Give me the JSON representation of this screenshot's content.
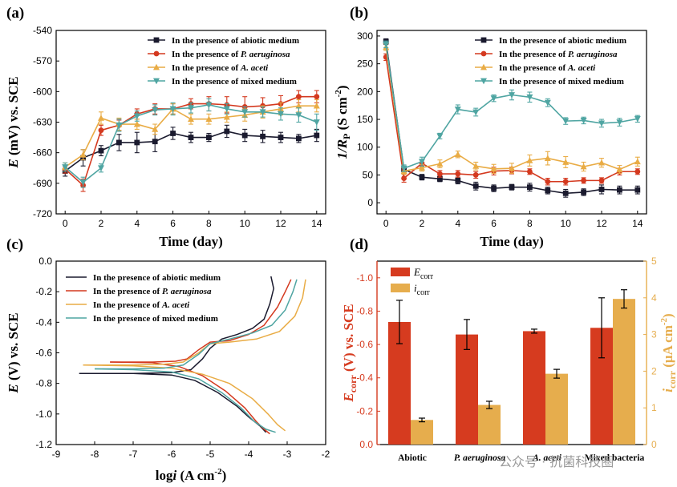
{
  "watermark": "公众号 · 抗菌科技圈",
  "chart_data": [
    {
      "panel": "(a)",
      "type": "line",
      "xlabel": "Time (day)",
      "ylabel_main": "E",
      "ylabel_rest": " (mV) vs. SCE",
      "xlim": [
        -0.5,
        14.5
      ],
      "ylim": [
        -720,
        -540
      ],
      "xticks": [
        0,
        2,
        4,
        6,
        8,
        10,
        12,
        14
      ],
      "yticks": [
        -720,
        -690,
        -660,
        -630,
        -600,
        -570,
        -540
      ],
      "x": [
        0,
        1,
        2,
        3,
        4,
        5,
        6,
        7,
        8,
        9,
        10,
        11,
        12,
        13,
        14
      ],
      "legend": {
        "position": "top-right",
        "prefix": "In the presence of "
      },
      "series": [
        {
          "name": "abiotic medium",
          "italic": false,
          "color": "#1a1a2e",
          "marker": "square",
          "values": [
            -678,
            -665,
            -658,
            -650,
            -650,
            -649,
            -641,
            -645,
            -645,
            -639,
            -643,
            -644,
            -645,
            -646,
            -643
          ],
          "errors": [
            5,
            8,
            5,
            8,
            10,
            10,
            6,
            5,
            4,
            6,
            6,
            6,
            5,
            4,
            6
          ]
        },
        {
          "name": "P. aeruginosa",
          "italic": true,
          "color": "#d4391f",
          "marker": "circle",
          "values": [
            -676,
            -692,
            -638,
            -633,
            -622,
            -617,
            -617,
            -612,
            -612,
            -613,
            -615,
            -614,
            -612,
            -605,
            -605
          ],
          "errors": [
            4,
            6,
            5,
            5,
            5,
            5,
            5,
            5,
            7,
            8,
            10,
            8,
            8,
            6,
            6
          ]
        },
        {
          "name": "A. aceti",
          "italic": true,
          "color": "#e9ac45",
          "marker": "triangle",
          "values": [
            -674,
            -662,
            -626,
            -632,
            -632,
            -637,
            -617,
            -627,
            -627,
            -625,
            -623,
            -620,
            -617,
            -614,
            -614
          ],
          "errors": [
            4,
            5,
            6,
            6,
            5,
            5,
            5,
            5,
            5,
            5,
            6,
            6,
            6,
            6,
            6
          ]
        },
        {
          "name": "mixed medium",
          "italic": false,
          "color": "#4fa5a2",
          "marker": "triangle-down",
          "values": [
            -674,
            -689,
            -675,
            -633,
            -624,
            -618,
            -617,
            -616,
            -613,
            -617,
            -620,
            -620,
            -622,
            -623,
            -630
          ],
          "errors": [
            4,
            5,
            4,
            6,
            5,
            5,
            6,
            5,
            6,
            5,
            5,
            5,
            6,
            7,
            8
          ]
        }
      ]
    },
    {
      "panel": "(b)",
      "type": "line",
      "xlabel": "Time (day)",
      "ylabel_main": "1/R",
      "ylabel_sub": "P",
      "ylabel_rest": " (S cm",
      "ylabel_sup": "-2",
      "ylabel_end": ")",
      "xlim": [
        -0.5,
        14.5
      ],
      "ylim": [
        -20,
        310
      ],
      "xticks": [
        0,
        2,
        4,
        6,
        8,
        10,
        12,
        14
      ],
      "yticks": [
        0,
        50,
        100,
        150,
        200,
        250,
        300
      ],
      "x": [
        0,
        1,
        2,
        3,
        4,
        5,
        6,
        7,
        8,
        9,
        10,
        11,
        12,
        13,
        14
      ],
      "legend": {
        "position": "top-right",
        "prefix": "In the presence of "
      },
      "series": [
        {
          "name": "abiotic medium",
          "italic": false,
          "color": "#1a1a2e",
          "marker": "square",
          "values": [
            290,
            60,
            46,
            43,
            40,
            30,
            26,
            28,
            28,
            22,
            17,
            19,
            24,
            23,
            23
          ],
          "errors": [
            5,
            5,
            5,
            5,
            6,
            7,
            6,
            5,
            7,
            6,
            7,
            6,
            8,
            7,
            7
          ]
        },
        {
          "name": "P. aeruginosa",
          "italic": true,
          "color": "#d4391f",
          "marker": "circle",
          "values": [
            262,
            44,
            71,
            52,
            52,
            50,
            57,
            58,
            56,
            38,
            38,
            40,
            40,
            56,
            56
          ],
          "errors": [
            6,
            7,
            6,
            6,
            6,
            6,
            7,
            6,
            5,
            6,
            6,
            5,
            5,
            6,
            5
          ]
        },
        {
          "name": "A. aceti",
          "italic": true,
          "color": "#e9ac45",
          "marker": "triangle",
          "values": [
            280,
            57,
            63,
            70,
            87,
            66,
            61,
            62,
            76,
            80,
            73,
            65,
            72,
            60,
            74
          ],
          "errors": [
            6,
            6,
            6,
            7,
            6,
            7,
            8,
            9,
            10,
            12,
            10,
            8,
            8,
            7,
            8
          ]
        },
        {
          "name": "mixed medium",
          "italic": false,
          "color": "#4fa5a2",
          "marker": "triangle-down",
          "values": [
            285,
            62,
            74,
            120,
            168,
            163,
            188,
            194,
            190,
            180,
            147,
            148,
            143,
            145,
            151
          ],
          "errors": [
            6,
            6,
            8,
            5,
            8,
            7,
            6,
            9,
            9,
            7,
            6,
            6,
            7,
            7,
            6
          ]
        }
      ]
    },
    {
      "panel": "(c)",
      "type": "line",
      "xlabel_main": "i",
      "xlabel_pre": "log",
      "xlabel_rest": " (A cm",
      "xlabel_sup": "-2",
      "xlabel_end": ")",
      "ylabel_main": "E",
      "ylabel_rest": " (V) vs. SCE",
      "xlim": [
        -9,
        -2
      ],
      "ylim": [
        -1.2,
        0.0
      ],
      "xticks": [
        -9,
        -8,
        -7,
        -6,
        -5,
        -4,
        -3,
        -2
      ],
      "yticks": [
        -1.2,
        -1.0,
        -0.8,
        -0.6,
        -0.4,
        -0.2,
        0.0
      ],
      "legend": {
        "position": "top-left",
        "prefix": "In the presence of "
      },
      "series": [
        {
          "name": "abiotic medium",
          "italic": false,
          "color": "#1a1a2e",
          "anodic": [
            [
              -8.4,
              -0.735
            ],
            [
              -7,
              -0.735
            ],
            [
              -6,
              -0.73
            ],
            [
              -5.5,
              -0.71
            ],
            [
              -5.2,
              -0.64
            ],
            [
              -5.0,
              -0.57
            ],
            [
              -4.7,
              -0.51
            ],
            [
              -4.3,
              -0.48
            ],
            [
              -3.9,
              -0.44
            ],
            [
              -3.6,
              -0.38
            ],
            [
              -3.45,
              -0.28
            ],
            [
              -3.35,
              -0.18
            ],
            [
              -3.42,
              -0.1
            ]
          ],
          "cathodic": [
            [
              -8.4,
              -0.735
            ],
            [
              -7,
              -0.735
            ],
            [
              -6,
              -0.745
            ],
            [
              -5.4,
              -0.78
            ],
            [
              -4.8,
              -0.86
            ],
            [
              -4.3,
              -0.95
            ],
            [
              -4.0,
              -1.02
            ],
            [
              -3.7,
              -1.08
            ],
            [
              -3.55,
              -1.12
            ]
          ]
        },
        {
          "name": "P. aeruginosa",
          "italic": true,
          "color": "#d4391f",
          "anodic": [
            [
              -7.6,
              -0.66
            ],
            [
              -6.5,
              -0.66
            ],
            [
              -5.9,
              -0.655
            ],
            [
              -5.6,
              -0.64
            ],
            [
              -5.3,
              -0.58
            ],
            [
              -5.0,
              -0.53
            ],
            [
              -4.5,
              -0.52
            ],
            [
              -4.0,
              -0.48
            ],
            [
              -3.6,
              -0.42
            ],
            [
              -3.25,
              -0.3
            ],
            [
              -3.05,
              -0.2
            ],
            [
              -2.9,
              -0.12
            ]
          ],
          "cathodic": [
            [
              -7.6,
              -0.66
            ],
            [
              -6.5,
              -0.665
            ],
            [
              -5.8,
              -0.69
            ],
            [
              -5.2,
              -0.75
            ],
            [
              -4.6,
              -0.85
            ],
            [
              -4.1,
              -0.96
            ],
            [
              -3.8,
              -1.05
            ],
            [
              -3.6,
              -1.1
            ],
            [
              -3.45,
              -1.13
            ]
          ]
        },
        {
          "name": "A. aceti",
          "italic": true,
          "color": "#e9ac45",
          "anodic": [
            [
              -8.3,
              -0.68
            ],
            [
              -7,
              -0.68
            ],
            [
              -6.2,
              -0.675
            ],
            [
              -5.7,
              -0.66
            ],
            [
              -5.3,
              -0.6
            ],
            [
              -5.0,
              -0.54
            ],
            [
              -4.5,
              -0.53
            ],
            [
              -3.8,
              -0.51
            ],
            [
              -3.2,
              -0.46
            ],
            [
              -2.8,
              -0.36
            ],
            [
              -2.6,
              -0.24
            ],
            [
              -2.52,
              -0.12
            ]
          ],
          "cathodic": [
            [
              -8.3,
              -0.68
            ],
            [
              -7,
              -0.685
            ],
            [
              -6,
              -0.7
            ],
            [
              -5.2,
              -0.74
            ],
            [
              -4.5,
              -0.8
            ],
            [
              -3.9,
              -0.9
            ],
            [
              -3.5,
              -1.0
            ],
            [
              -3.25,
              -1.07
            ],
            [
              -3.05,
              -1.11
            ]
          ]
        },
        {
          "name": "mixed medium",
          "italic": false,
          "color": "#4fa5a2",
          "anodic": [
            [
              -8.0,
              -0.705
            ],
            [
              -7,
              -0.705
            ],
            [
              -6.2,
              -0.7
            ],
            [
              -5.7,
              -0.68
            ],
            [
              -5.3,
              -0.61
            ],
            [
              -5.0,
              -0.54
            ],
            [
              -4.5,
              -0.51
            ],
            [
              -3.9,
              -0.47
            ],
            [
              -3.4,
              -0.42
            ],
            [
              -3.05,
              -0.32
            ],
            [
              -2.85,
              -0.2
            ],
            [
              -2.75,
              -0.12
            ]
          ],
          "cathodic": [
            [
              -8.0,
              -0.705
            ],
            [
              -7,
              -0.71
            ],
            [
              -6,
              -0.725
            ],
            [
              -5.3,
              -0.77
            ],
            [
              -4.7,
              -0.86
            ],
            [
              -4.2,
              -0.96
            ],
            [
              -3.85,
              -1.05
            ],
            [
              -3.55,
              -1.1
            ],
            [
              -3.3,
              -1.12
            ]
          ]
        }
      ]
    },
    {
      "panel": "(d)",
      "type": "bar",
      "categories": [
        "Abiotic",
        "P. aeruginosa",
        "A. aceti",
        "Mixed bacteria"
      ],
      "categories_italic": [
        false,
        true,
        true,
        false
      ],
      "ylabel_left_main": "E",
      "ylabel_left_sub": "corr",
      "ylabel_left_rest": " (V) vs. SCE",
      "ylabel_right_main": "i",
      "ylabel_right_sub": "corr",
      "ylabel_right_rest": " (μA cm",
      "ylabel_right_sup": "-2",
      "ylabel_right_end": ")",
      "ylim_left": [
        0.0,
        -1.1
      ],
      "ylim_right": [
        0,
        5
      ],
      "yticks_left": [
        "0.0",
        "-0.2",
        "-0.4",
        "-0.6",
        "-0.8",
        "-1.0"
      ],
      "yticks_right": [
        0,
        1,
        2,
        3,
        4,
        5
      ],
      "legend": {
        "position": "top-left"
      },
      "series": [
        {
          "name_main": "E",
          "name_sub": "corr",
          "color": "#d63b1f",
          "axis": "left",
          "values": [
            -0.735,
            -0.66,
            -0.68,
            -0.7
          ],
          "errors": [
            0.13,
            0.09,
            0.012,
            0.18
          ]
        },
        {
          "name_main": "i",
          "name_sub": "corr",
          "color": "#e6ad4d",
          "axis": "right",
          "values": [
            0.67,
            1.08,
            1.93,
            3.97
          ],
          "errors": [
            0.05,
            0.1,
            0.12,
            0.25
          ]
        }
      ],
      "left_axis_color": "#d63b1f",
      "right_axis_color": "#e6ad4d"
    }
  ]
}
